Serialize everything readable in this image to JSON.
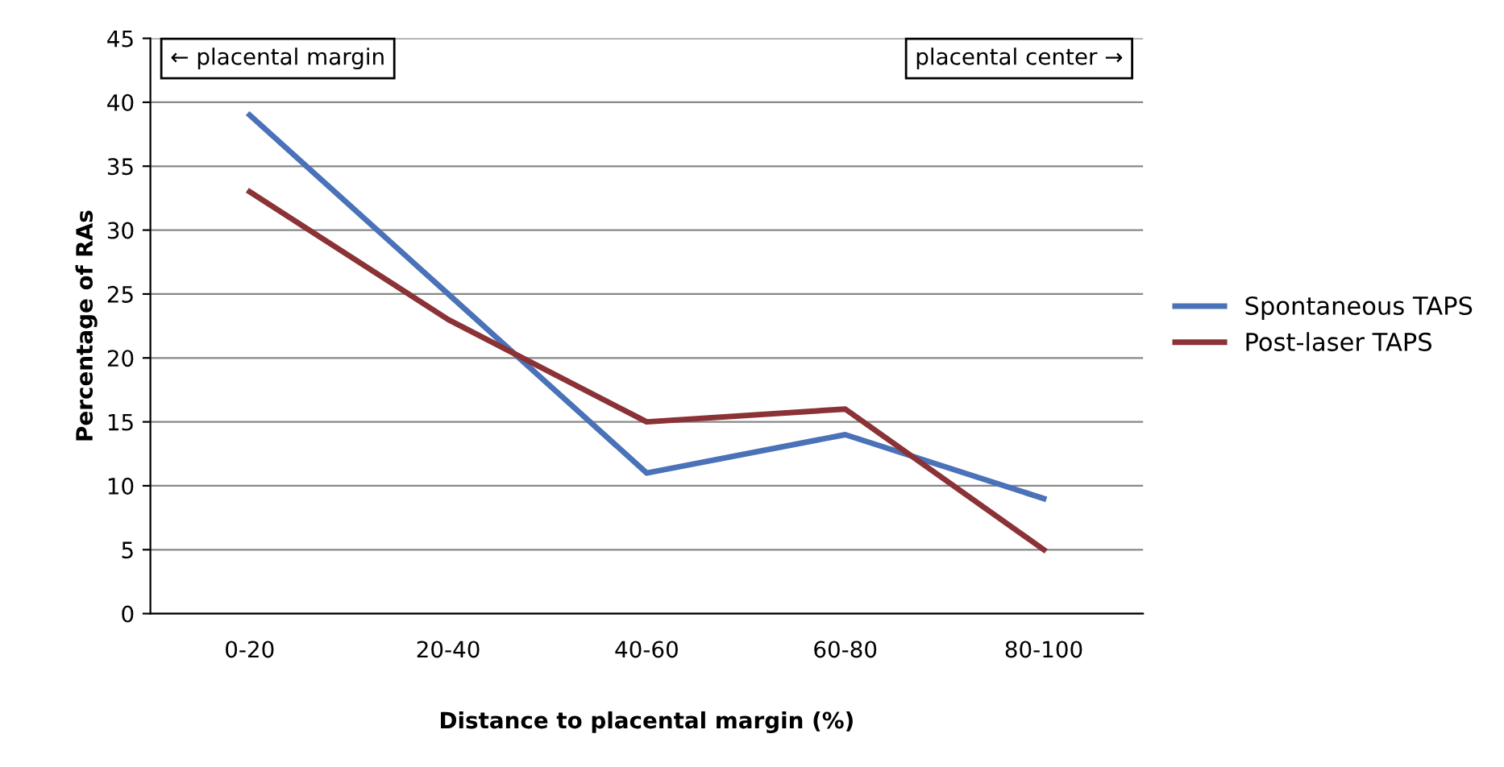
{
  "chart_data": {
    "type": "line",
    "xlabel": "Distance to placental margin (%)",
    "ylabel": "Percentage of RAs",
    "categories": [
      "0-20",
      "20-40",
      "40-60",
      "60-80",
      "80-100"
    ],
    "series": [
      {
        "name": "Spontaneous TAPS",
        "color": "#4a72b8",
        "values": [
          39,
          25,
          11,
          14,
          9
        ]
      },
      {
        "name": "Post-laser TAPS",
        "color": "#8b3236",
        "values": [
          33,
          23,
          15,
          16,
          5
        ]
      }
    ],
    "ylim": [
      0,
      45
    ],
    "yticks": [
      0,
      5,
      10,
      15,
      20,
      25,
      30,
      35,
      40,
      45
    ],
    "grid": "y",
    "legend": "right",
    "marker": "none",
    "line_style": "solid",
    "annotations": [
      "← placental margin",
      "placental center →"
    ]
  }
}
